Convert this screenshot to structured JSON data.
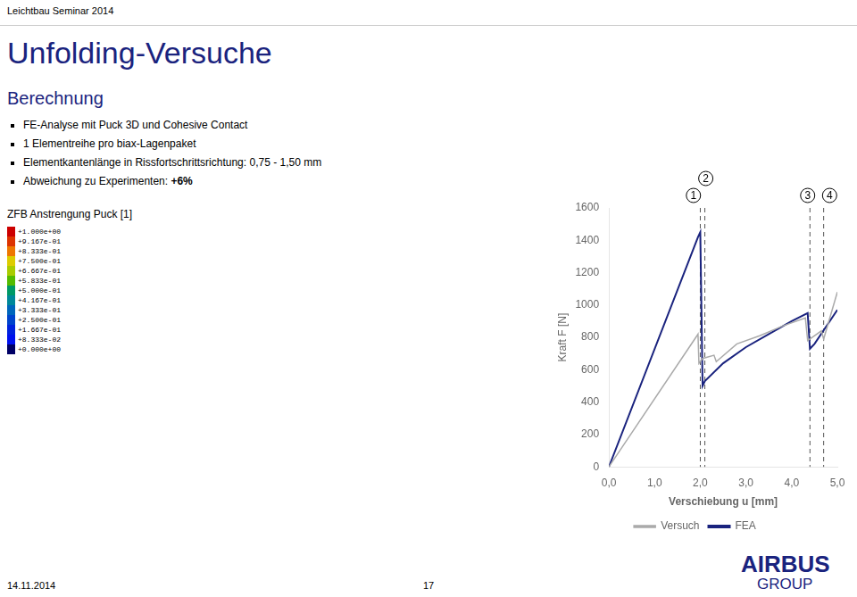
{
  "chart_data": {
    "type": "line",
    "title": "Unfolding-Versuche",
    "subtitle": "Berechnung",
    "header": "Leichtbau Seminar 2014",
    "bullets": [
      "FE-Analyse mit Puck 3D und Cohesive Contact",
      "1 Elementreihe pro biax-Lagenpaket",
      "Elementkantenlänge in Rissfortschrittsrichtung: 0,75 - 1,50 mm",
      "Abweichung zu Experimenten: "
    ],
    "bullet_emphasis": "+6%",
    "colorbar": {
      "title": "ZFB Anstrengung Puck [1]",
      "labels": [
        "+1.000e+00",
        "+9.167e-01",
        "+8.333e-01",
        "+7.500e-01",
        "+6.667e-01",
        "+5.833e-01",
        "+5.000e-01",
        "+4.167e-01",
        "+3.333e-01",
        "+2.500e-01",
        "+1.667e-01",
        "+8.333e-02",
        "+0.000e+00"
      ],
      "colors": [
        "#cc0000",
        "#dd3300",
        "#ee7700",
        "#ddcc00",
        "#aacc00",
        "#55bb00",
        "#009966",
        "#008899",
        "#0066bb",
        "#0044cc",
        "#0022dd",
        "#0011ee",
        "#000066"
      ]
    },
    "date": "14.11.2014",
    "page_number": "17",
    "logo": [
      "AIRBUS",
      "GROUP"
    ],
    "text_color": "#1a237e",
    "xlabel": "Verschiebung u [mm]",
    "ylabel": "Kraft F [N]",
    "xlim": [
      0.0,
      5.0
    ],
    "ylim": [
      0,
      1600
    ],
    "xticks": [
      {
        "value": 0.0,
        "label": "0,0"
      },
      {
        "value": 1.0,
        "label": "1,0"
      },
      {
        "value": 2.0,
        "label": "2,0"
      },
      {
        "value": 3.0,
        "label": "3,0"
      },
      {
        "value": 4.0,
        "label": "4,0"
      },
      {
        "value": 5.0,
        "label": "5,0"
      }
    ],
    "yticks": [
      0,
      200,
      400,
      600,
      800,
      1000,
      1200,
      1400,
      1600
    ],
    "grid": false,
    "legend": "bottom",
    "series": [
      {
        "name": "Versuch",
        "color": "#aaaaaa",
        "x": [
          0.0,
          1.95,
          1.97,
          2.05,
          2.3,
          2.35,
          2.8,
          3.3,
          3.8,
          4.3,
          4.35,
          4.65,
          4.7,
          5.0
        ],
        "values": [
          0,
          820,
          640,
          670,
          690,
          650,
          760,
          810,
          870,
          920,
          780,
          840,
          790,
          1080
        ]
      },
      {
        "name": "FEA",
        "color": "#1a237e",
        "x": [
          0.0,
          1.95,
          2.0,
          2.05,
          2.1,
          2.5,
          3.0,
          3.5,
          4.0,
          4.35,
          4.4,
          4.5,
          5.0
        ],
        "values": [
          0,
          1420,
          1450,
          500,
          530,
          640,
          740,
          820,
          900,
          950,
          730,
          760,
          970
        ]
      }
    ],
    "reference_lines": {
      "x": [
        2.0,
        2.1,
        4.4,
        4.7
      ],
      "color": "#555555",
      "line_style": "dashed"
    },
    "annotations": [
      {
        "text": "1",
        "x": 1.85
      },
      {
        "text": "2",
        "x": 2.12
      },
      {
        "text": "3",
        "x": 4.35
      },
      {
        "text": "4",
        "x": 4.83
      }
    ]
  }
}
